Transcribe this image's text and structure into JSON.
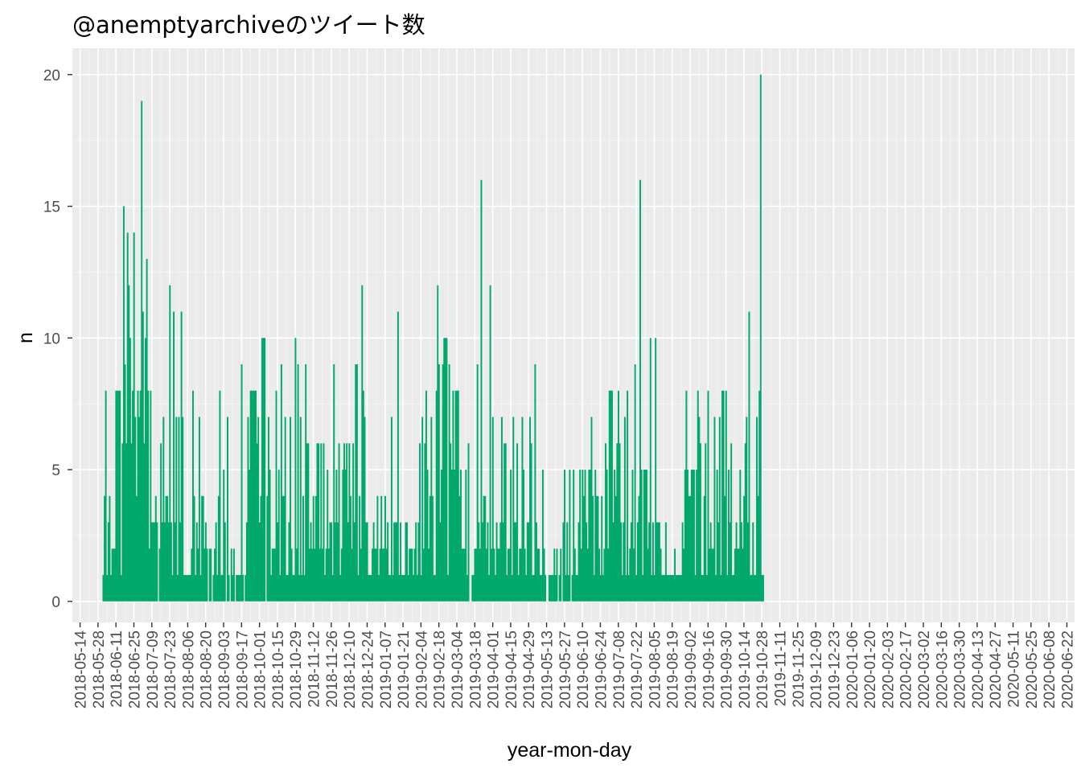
{
  "colors": {
    "bar": "#00A96B",
    "panel": "#EBEBEB",
    "grid_major": "#FFFFFF",
    "grid_minor": "#F5F5F5",
    "tick_text": "#4D4D4D",
    "tick_mark": "#333333"
  },
  "chart_data": {
    "type": "bar",
    "title": "@anemptyarchiveのツイート数",
    "xlabel": "year-mon-day",
    "ylabel": "n",
    "ylim": [
      -0.8,
      21.0
    ],
    "yticks": [
      0,
      5,
      10,
      15,
      20
    ],
    "xlim": [
      "2018-05-08",
      "2020-06-28"
    ],
    "x_tick_labels": [
      "2018-05-14",
      "2018-05-28",
      "2018-06-11",
      "2018-06-25",
      "2018-07-09",
      "2018-07-23",
      "2018-08-06",
      "2018-08-20",
      "2018-09-03",
      "2018-09-17",
      "2018-10-01",
      "2018-10-15",
      "2018-10-29",
      "2018-11-12",
      "2018-11-26",
      "2018-12-10",
      "2018-12-24",
      "2019-01-07",
      "2019-01-21",
      "2019-02-04",
      "2019-02-18",
      "2019-03-04",
      "2019-03-18",
      "2019-04-01",
      "2019-04-15",
      "2019-04-29",
      "2019-05-13",
      "2019-05-27",
      "2019-06-10",
      "2019-06-24",
      "2019-07-08",
      "2019-07-22",
      "2019-08-05",
      "2019-08-19",
      "2019-09-02",
      "2019-09-16",
      "2019-09-30",
      "2019-10-14",
      "2019-10-28",
      "2019-11-11",
      "2019-11-25",
      "2019-12-09",
      "2019-12-23",
      "2020-01-06",
      "2020-01-20",
      "2020-02-03",
      "2020-02-17",
      "2020-03-02",
      "2020-03-16",
      "2020-03-30",
      "2020-04-13",
      "2020-04-27",
      "2020-05-11",
      "2020-05-25",
      "2020-06-08",
      "2020-06-22"
    ],
    "grid": true,
    "legend": "none",
    "series": [
      {
        "start_date": "2018-06-01",
        "values": [
          1,
          4,
          8,
          1,
          3,
          4,
          1,
          2,
          2,
          2,
          8,
          8,
          8,
          8,
          1,
          6,
          15,
          9,
          6,
          14,
          12,
          10,
          6,
          8,
          14,
          7,
          4,
          8,
          7,
          8,
          19,
          11,
          6,
          10,
          13,
          8,
          2,
          8,
          3,
          3,
          3,
          4,
          3,
          0,
          2,
          6,
          3,
          7,
          3,
          4,
          4,
          3,
          12,
          3,
          1,
          11,
          3,
          7,
          1,
          7,
          3,
          11,
          7,
          1,
          1,
          1,
          1,
          1,
          1,
          2,
          8,
          4,
          1,
          3,
          2,
          7,
          1,
          4,
          4,
          2,
          3,
          2,
          0,
          2,
          2,
          0,
          1,
          2,
          3,
          1,
          4,
          8,
          1,
          1,
          5,
          3,
          0,
          7,
          1,
          0,
          2,
          1,
          2,
          0,
          1,
          1,
          1,
          1,
          9,
          1,
          0,
          1,
          3,
          7,
          5,
          8,
          8,
          8,
          8,
          8,
          6,
          7,
          3,
          4,
          10,
          10,
          10,
          0,
          4,
          7,
          5,
          1,
          2,
          2,
          2,
          8,
          3,
          5,
          1,
          9,
          4,
          4,
          7,
          1,
          1,
          3,
          7,
          2,
          1,
          1,
          10,
          2,
          9,
          1,
          7,
          1,
          4,
          1,
          9,
          6,
          6,
          2,
          3,
          2,
          4,
          2,
          4,
          6,
          6,
          2,
          6,
          2,
          6,
          1,
          2,
          5,
          2,
          3,
          3,
          1,
          9,
          3,
          5,
          3,
          6,
          1,
          2,
          5,
          6,
          5,
          6,
          3,
          6,
          4,
          2,
          6,
          3,
          9,
          9,
          1,
          4,
          2,
          12,
          8,
          7,
          3,
          3,
          1,
          1,
          1,
          2,
          3,
          2,
          2,
          4,
          1,
          2,
          4,
          2,
          2,
          4,
          2,
          3,
          1,
          1,
          7,
          1,
          3,
          3,
          3,
          11,
          1,
          3,
          1,
          1,
          1,
          3,
          3,
          1,
          2,
          2,
          2,
          1,
          2,
          3,
          1,
          3,
          6,
          1,
          7,
          2,
          6,
          8,
          5,
          2,
          4,
          7,
          4,
          1,
          1,
          8,
          12,
          9,
          3,
          5,
          9,
          10,
          10,
          10,
          1,
          9,
          6,
          5,
          8,
          5,
          8,
          8,
          8,
          4,
          5,
          2,
          2,
          2,
          5,
          1,
          6,
          0,
          0,
          1,
          1,
          2,
          2,
          9,
          3,
          2,
          16,
          3,
          4,
          4,
          2,
          3,
          1,
          12,
          2,
          7,
          2,
          1,
          3,
          2,
          2,
          3,
          7,
          3,
          6,
          6,
          1,
          2,
          2,
          5,
          1,
          7,
          3,
          3,
          6,
          1,
          2,
          2,
          7,
          5,
          2,
          1,
          3,
          3,
          7,
          6,
          1,
          1,
          9,
          3,
          2,
          2,
          1,
          1,
          5,
          2,
          1,
          0,
          0,
          1,
          1,
          1,
          1,
          2,
          1,
          2,
          0,
          1,
          2,
          0,
          3,
          5,
          1,
          3,
          1,
          5,
          0,
          1,
          5,
          2,
          1,
          1,
          3,
          5,
          2,
          5,
          4,
          5,
          3,
          2,
          5,
          5,
          7,
          4,
          1,
          5,
          4,
          4,
          2,
          1,
          4,
          1,
          2,
          6,
          5,
          2,
          8,
          8,
          8,
          3,
          5,
          4,
          6,
          8,
          6,
          3,
          1,
          3,
          7,
          1,
          8,
          1,
          2,
          3,
          5,
          2,
          9,
          1,
          3,
          4,
          16,
          5,
          1,
          5,
          5,
          5,
          2,
          3,
          10,
          1,
          3,
          1,
          10,
          3,
          3,
          3,
          2,
          1,
          1,
          1,
          3,
          1,
          1,
          1,
          1,
          1,
          1,
          2,
          1,
          1,
          1,
          1,
          1,
          3,
          2,
          5,
          8,
          5,
          4,
          4,
          5,
          5,
          5,
          1,
          5,
          8,
          7,
          6,
          1,
          1,
          4,
          6,
          1,
          8,
          2,
          3,
          2,
          2,
          7,
          1,
          5,
          3,
          7,
          1,
          8,
          8,
          4,
          8,
          1,
          5,
          3,
          6,
          1,
          1,
          2,
          3,
          2,
          2,
          5,
          3,
          2,
          4,
          6,
          7,
          3,
          11,
          1,
          1,
          3,
          1,
          1,
          7,
          4,
          8,
          20,
          1,
          1
        ]
      }
    ]
  }
}
